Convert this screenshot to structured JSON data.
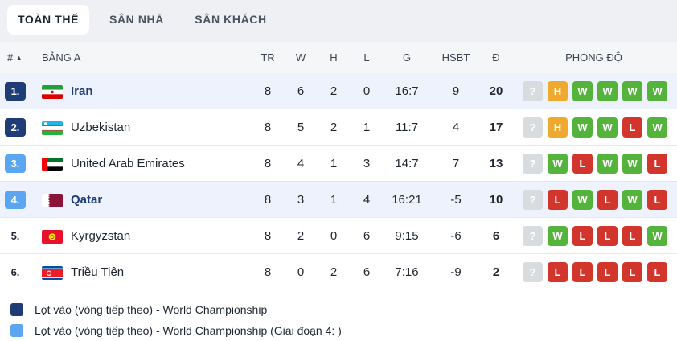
{
  "tabs": [
    {
      "label": "TOÀN THỂ",
      "active": true
    },
    {
      "label": "SÂN NHÀ",
      "active": false
    },
    {
      "label": "SÂN KHÁCH",
      "active": false
    }
  ],
  "header": {
    "rank": "#",
    "group": "BẢNG A",
    "played": "TR",
    "won": "W",
    "drawn": "H",
    "lost": "L",
    "goals": "G",
    "goal_diff": "HSBT",
    "points": "Đ",
    "form": "PHONG ĐỘ"
  },
  "form_unknown": "?",
  "rows": [
    {
      "rank": "1.",
      "team": "Iran",
      "flag": "iran-flag",
      "tr": "8",
      "w": "6",
      "h": "2",
      "l": "0",
      "g": "16:7",
      "hsbt": "9",
      "pts": "20",
      "form": [
        "H",
        "W",
        "W",
        "W",
        "W"
      ]
    },
    {
      "rank": "2.",
      "team": "Uzbekistan",
      "flag": "uzbekistan-flag",
      "tr": "8",
      "w": "5",
      "h": "2",
      "l": "1",
      "g": "11:7",
      "hsbt": "4",
      "pts": "17",
      "form": [
        "H",
        "W",
        "W",
        "L",
        "W"
      ]
    },
    {
      "rank": "3.",
      "team": "United Arab Emirates",
      "flag": "uae-flag",
      "tr": "8",
      "w": "4",
      "h": "1",
      "l": "3",
      "g": "14:7",
      "hsbt": "7",
      "pts": "13",
      "form": [
        "W",
        "L",
        "W",
        "W",
        "L"
      ]
    },
    {
      "rank": "4.",
      "team": "Qatar",
      "flag": "qatar-flag",
      "tr": "8",
      "w": "3",
      "h": "1",
      "l": "4",
      "g": "16:21",
      "hsbt": "-5",
      "pts": "10",
      "form": [
        "L",
        "W",
        "L",
        "W",
        "L"
      ]
    },
    {
      "rank": "5.",
      "team": "Kyrgyzstan",
      "flag": "kyrgyzstan-flag",
      "tr": "8",
      "w": "2",
      "h": "0",
      "l": "6",
      "g": "9:15",
      "hsbt": "-6",
      "pts": "6",
      "form": [
        "W",
        "L",
        "L",
        "L",
        "W"
      ]
    },
    {
      "rank": "6.",
      "team": "Triều Tiên",
      "flag": "north-korea-flag",
      "tr": "8",
      "w": "0",
      "h": "2",
      "l": "6",
      "g": "7:16",
      "hsbt": "-9",
      "pts": "2",
      "form": [
        "L",
        "L",
        "L",
        "L",
        "L"
      ]
    }
  ],
  "legend": [
    {
      "text": "Lọt vào (vòng tiếp theo) - World Championship",
      "color": "#1f3c77"
    },
    {
      "text": "Lọt vào (vòng tiếp theo) - World Championship (Giai đoạn 4: )",
      "color": "#5aa6f0"
    }
  ],
  "colors": {
    "win": "#54b33a",
    "loss": "#d2352b",
    "draw": "#eea92e",
    "unknown": "#d9dcdf",
    "qualify_direct": "#1f3c77",
    "qualify_stage4": "#5aa6f0"
  }
}
